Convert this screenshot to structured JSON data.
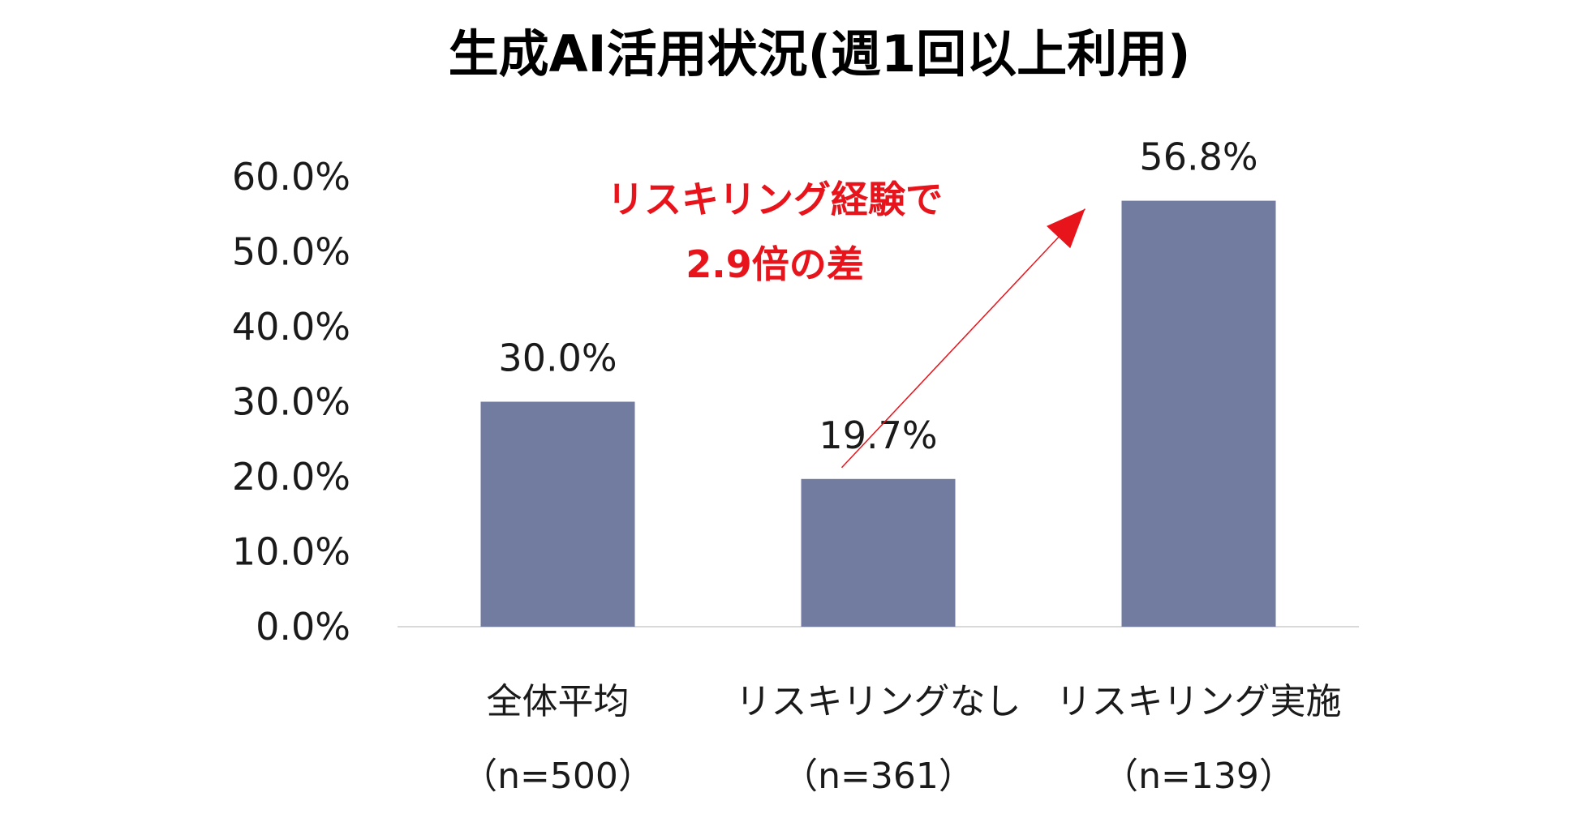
{
  "chart_data": {
    "type": "bar",
    "title": "生成AI活用状況(週1回以上利用)",
    "categories": [
      {
        "label": "全体平均",
        "n": "（n=500）"
      },
      {
        "label": "リスキリングなし",
        "n": "（n=361）"
      },
      {
        "label": "リスキリング実施",
        "n": "（n=139）"
      }
    ],
    "values": [
      30.0,
      19.7,
      56.8
    ],
    "value_labels": [
      "30.0%",
      "19.7%",
      "56.8%"
    ],
    "ylim": [
      0,
      60
    ],
    "y_ticks": [
      "0.0%",
      "10.0%",
      "20.0%",
      "30.0%",
      "40.0%",
      "50.0%",
      "60.0%"
    ],
    "xlabel": "",
    "ylabel": "",
    "grid": false,
    "bar_color": "#717ca0",
    "annotation": {
      "line1": "リスキリング経験で",
      "line2": "2.9倍の差",
      "color": "#e8141c",
      "arrow_from_category": 1,
      "arrow_to_category": 2
    }
  }
}
